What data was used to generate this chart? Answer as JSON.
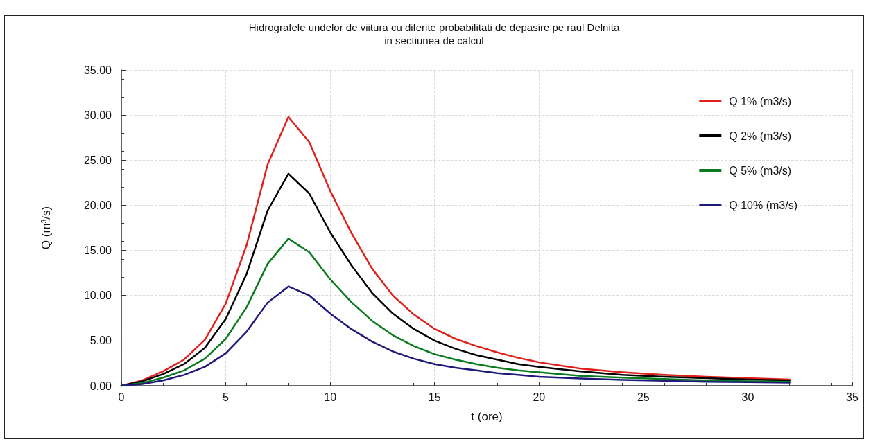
{
  "chart_data": {
    "type": "line",
    "title": "Hidrografele undelor de viitura cu diferite probabilitati de depasire pe raul Delnita",
    "subtitle": "in sectiunea de calcul",
    "xlabel": "t (ore)",
    "ylabel": "Q (m³/s)",
    "x": [
      0,
      1,
      2,
      3,
      4,
      5,
      6,
      7,
      8,
      9,
      10,
      11,
      12,
      13,
      14,
      15,
      16,
      17,
      18,
      19,
      20,
      22,
      24,
      26,
      28,
      30,
      32
    ],
    "series": [
      {
        "name": "Q 1% (m3/s)",
        "color": "#e0201b",
        "values": [
          0,
          0.6,
          1.6,
          2.9,
          5.1,
          9.1,
          15.6,
          24.5,
          29.8,
          27.0,
          21.6,
          17.0,
          13.0,
          10.0,
          7.9,
          6.3,
          5.2,
          4.4,
          3.7,
          3.1,
          2.6,
          1.9,
          1.5,
          1.2,
          1.0,
          0.85,
          0.7
        ]
      },
      {
        "name": "Q 2% (m3/s)",
        "color": "#000000",
        "values": [
          0,
          0.5,
          1.3,
          2.4,
          4.2,
          7.4,
          12.4,
          19.4,
          23.5,
          21.3,
          17.0,
          13.4,
          10.3,
          8.0,
          6.3,
          5.0,
          4.1,
          3.4,
          2.9,
          2.4,
          2.1,
          1.6,
          1.2,
          1.0,
          0.85,
          0.7,
          0.6
        ]
      },
      {
        "name": "Q 5% (m3/s)",
        "color": "#0a7a1e",
        "values": [
          0,
          0.3,
          0.9,
          1.7,
          3.0,
          5.2,
          8.7,
          13.5,
          16.3,
          14.8,
          11.8,
          9.3,
          7.2,
          5.6,
          4.4,
          3.5,
          2.9,
          2.4,
          2.0,
          1.7,
          1.5,
          1.1,
          0.9,
          0.75,
          0.6,
          0.5,
          0.45
        ]
      },
      {
        "name": "Q 10% (m3/s)",
        "color": "#1f1a7a",
        "values": [
          0,
          0.2,
          0.6,
          1.2,
          2.1,
          3.6,
          6.0,
          9.2,
          11.0,
          10.0,
          8.0,
          6.3,
          4.9,
          3.8,
          3.0,
          2.4,
          2.0,
          1.7,
          1.4,
          1.2,
          1.0,
          0.8,
          0.65,
          0.55,
          0.45,
          0.4,
          0.35
        ]
      }
    ],
    "xlim": [
      0,
      35
    ],
    "xticks": [
      0,
      5,
      10,
      15,
      20,
      25,
      30,
      35
    ],
    "ylim": [
      0,
      35
    ],
    "yticks": [
      {
        "value": 0,
        "label": "0.00"
      },
      {
        "value": 5,
        "label": "5.00"
      },
      {
        "value": 10,
        "label": "10.00"
      },
      {
        "value": 15,
        "label": "15.00"
      },
      {
        "value": 20,
        "label": "20.00"
      },
      {
        "value": 25,
        "label": "25.00"
      },
      {
        "value": 30,
        "label": "30.00"
      },
      {
        "value": 35,
        "label": "35.00"
      }
    ],
    "grid": true,
    "legend": "right",
    "marker": "none",
    "line_style": "solid"
  }
}
